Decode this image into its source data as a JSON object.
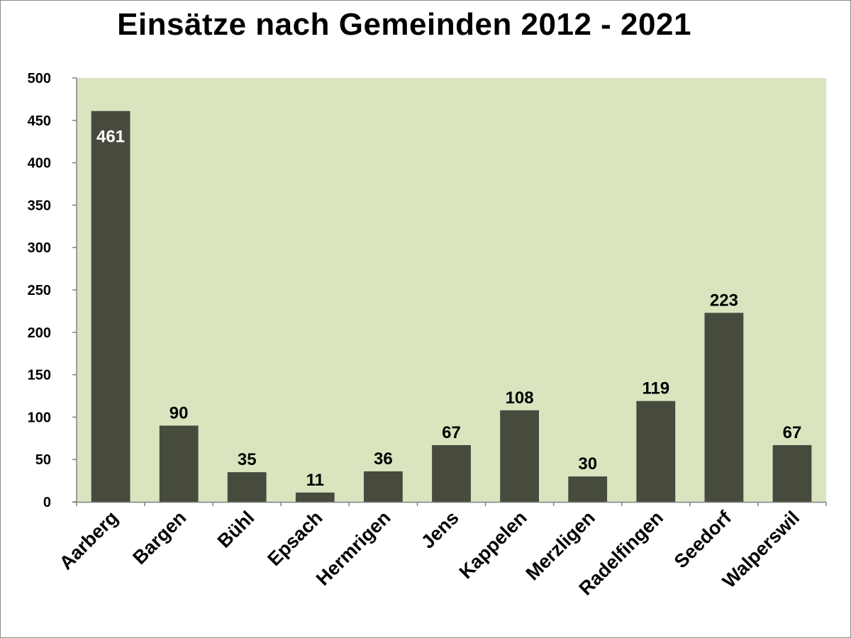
{
  "chart_data": {
    "type": "bar",
    "title": "Einsätze nach Gemeinden 2012 - 2021",
    "xlabel": "",
    "ylabel": "",
    "categories": [
      "Aarberg",
      "Bargen",
      "Bühl",
      "Epsach",
      "Hermrigen",
      "Jens",
      "Kappelen",
      "Merzligen",
      "Radelfingen",
      "Seedorf",
      "Walperswil"
    ],
    "values": [
      461,
      90,
      35,
      11,
      36,
      67,
      108,
      30,
      119,
      223,
      67
    ],
    "data_labels": [
      "461",
      "90",
      "35",
      "11",
      "36",
      "67",
      "108",
      "30",
      "119",
      "223",
      "67"
    ],
    "ylim": [
      0,
      500
    ],
    "yticks": [
      0,
      50,
      100,
      150,
      200,
      250,
      300,
      350,
      400,
      450,
      500
    ],
    "grid": false,
    "legend": "none",
    "colors": {
      "bar": "#464b3e",
      "plot_background": "#d9e5bf",
      "axis": "#808080",
      "label_inside": "#ffffff",
      "label_outside": "#000000"
    }
  }
}
